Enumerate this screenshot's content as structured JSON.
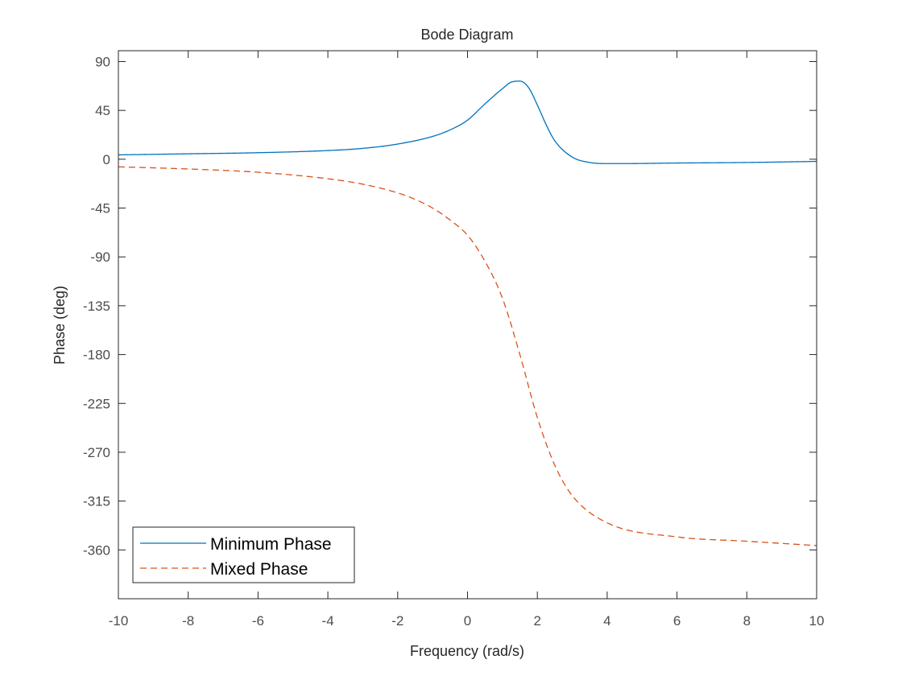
{
  "chart_data": {
    "type": "line",
    "title": "Bode Diagram",
    "xlabel": "Frequency (rad/s)",
    "ylabel": "Phase (deg)",
    "xlim": [
      -10,
      10
    ],
    "ylim": [
      -405,
      100
    ],
    "xticks": [
      -10,
      -8,
      -6,
      -4,
      -2,
      0,
      2,
      4,
      6,
      8,
      10
    ],
    "yticks": [
      90,
      45,
      0,
      -45,
      -90,
      -135,
      -180,
      -225,
      -270,
      -315,
      -360
    ],
    "grid": false,
    "legend_position": "bottom-left",
    "series": [
      {
        "name": "Minimum Phase",
        "color": "#0072BD",
        "style": "solid",
        "x": [
          -10,
          -8,
          -6,
          -4,
          -3,
          -2,
          -1,
          -0.5,
          0,
          0.5,
          1,
          1.25,
          1.5,
          1.75,
          2,
          2.25,
          2.5,
          3,
          3.5,
          4,
          4.5,
          6,
          8,
          10
        ],
        "y": [
          4,
          5,
          6,
          8,
          10,
          14,
          21,
          27,
          36,
          51,
          65,
          71,
          72,
          66,
          50,
          32,
          17,
          2,
          -3,
          -4,
          -4,
          -3.5,
          -3,
          -2
        ]
      },
      {
        "name": "Mixed Phase",
        "color": "#D95319",
        "style": "dashed",
        "x": [
          -10,
          -8,
          -6,
          -4,
          -3,
          -2,
          -1.5,
          -1,
          -0.5,
          0,
          0.5,
          1,
          1.5,
          2,
          2.5,
          3,
          4,
          6,
          8,
          10
        ],
        "y": [
          -7,
          -9,
          -12,
          -18,
          -23,
          -31,
          -37,
          -45,
          -56,
          -70,
          -94,
          -128,
          -180,
          -238,
          -282,
          -310,
          -335,
          -348,
          -352,
          -356
        ]
      }
    ]
  }
}
